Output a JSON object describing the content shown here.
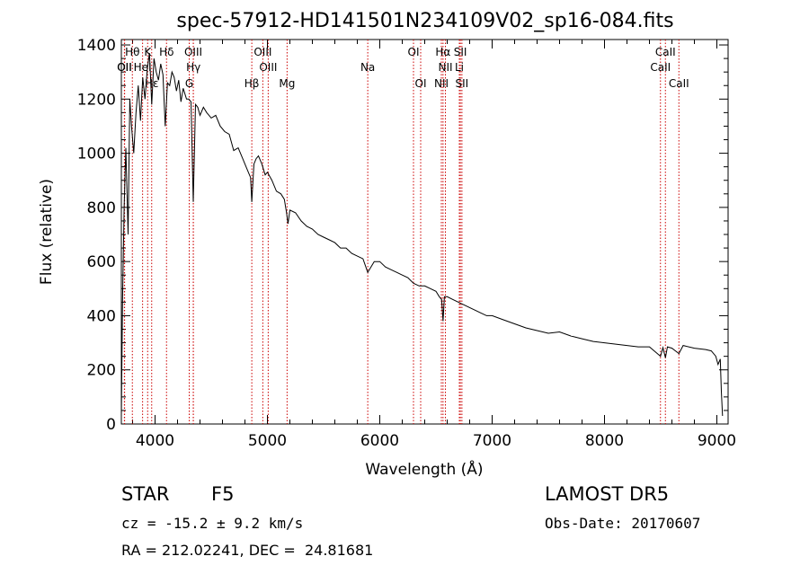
{
  "chart_data": {
    "type": "line",
    "title": "spec-57912-HD141501N234109V02_sp16-084.fits",
    "xlabel": "Wavelength (Å)",
    "ylabel": "Flux (relative)",
    "xlim": [
      3700,
      9100
    ],
    "ylim": [
      0,
      1420
    ],
    "xticks": [
      4000,
      5000,
      6000,
      7000,
      8000,
      9000
    ],
    "yticks": [
      0,
      200,
      400,
      600,
      800,
      1000,
      1200,
      1400
    ],
    "grid": false,
    "series": [
      {
        "x": [
          3700,
          3710,
          3725,
          3740,
          3760,
          3775,
          3790,
          3810,
          3830,
          3850,
          3870,
          3890,
          3910,
          3930,
          3950,
          3970,
          3990,
          4010,
          4030,
          4050,
          4070,
          4090,
          4110,
          4130,
          4150,
          4170,
          4190,
          4210,
          4230,
          4250,
          4280,
          4300,
          4320,
          4340,
          4360,
          4380,
          4400,
          4430,
          4460,
          4500,
          4540,
          4580,
          4620,
          4660,
          4700,
          4740,
          4780,
          4820,
          4850,
          4861,
          4880,
          4900,
          4920,
          4950,
          4980,
          5000,
          5040,
          5080,
          5120,
          5150,
          5170,
          5183,
          5200,
          5250,
          5300,
          5350,
          5400,
          5450,
          5500,
          5550,
          5600,
          5650,
          5700,
          5750,
          5800,
          5850,
          5893,
          5950,
          6000,
          6050,
          6100,
          6150,
          6200,
          6250,
          6300,
          6350,
          6400,
          6450,
          6500,
          6530,
          6550,
          6563,
          6575,
          6600,
          6650,
          6700,
          6750,
          6800,
          6850,
          6900,
          6950,
          7000,
          7100,
          7200,
          7300,
          7400,
          7500,
          7600,
          7700,
          7800,
          7900,
          8000,
          8100,
          8200,
          8300,
          8400,
          8498,
          8520,
          8542,
          8560,
          8600,
          8662,
          8700,
          8800,
          8900,
          8950,
          8990,
          9010,
          9030,
          9040,
          9050
        ],
        "values": [
          30,
          450,
          800,
          1020,
          700,
          1200,
          1100,
          1000,
          1150,
          1250,
          1120,
          1280,
          1200,
          1310,
          1370,
          1180,
          1350,
          1300,
          1270,
          1330,
          1290,
          1100,
          1260,
          1250,
          1300,
          1280,
          1230,
          1270,
          1190,
          1240,
          1200,
          1200,
          1190,
          820,
          1180,
          1170,
          1140,
          1170,
          1150,
          1130,
          1140,
          1100,
          1080,
          1070,
          1010,
          1020,
          980,
          940,
          910,
          820,
          960,
          980,
          990,
          960,
          920,
          930,
          900,
          860,
          850,
          830,
          780,
          740,
          790,
          780,
          750,
          730,
          720,
          700,
          690,
          680,
          670,
          650,
          650,
          630,
          620,
          610,
          560,
          600,
          600,
          580,
          570,
          560,
          550,
          540,
          520,
          510,
          510,
          500,
          490,
          470,
          460,
          380,
          470,
          470,
          460,
          450,
          440,
          430,
          420,
          410,
          400,
          400,
          385,
          370,
          355,
          345,
          335,
          340,
          325,
          315,
          305,
          300,
          295,
          290,
          285,
          285,
          250,
          282,
          245,
          285,
          280,
          260,
          290,
          280,
          275,
          270,
          250,
          220,
          240,
          120,
          30
        ]
      }
    ],
    "lines": [
      {
        "label": "Hθ",
        "x": 3798
      },
      {
        "label": "K",
        "x": 3934
      },
      {
        "label": "Hδ",
        "x": 4102
      },
      {
        "label": "OIII",
        "x": 4340
      },
      {
        "label": "OIII",
        "x": 4959
      },
      {
        "label": "OI",
        "x": 6300
      },
      {
        "label": "Hα",
        "x": 6563
      },
      {
        "label": "SII",
        "x": 6717
      },
      {
        "label": "CaII",
        "x": 8542
      },
      {
        "label": "OII",
        "x": 3727
      },
      {
        "label": "HeI",
        "x": 3889
      },
      {
        "label": "Hγ",
        "x": 4341
      },
      {
        "label": "OIII",
        "x": 5007
      },
      {
        "label": "Na",
        "x": 5893
      },
      {
        "label": "NII",
        "x": 6584
      },
      {
        "label": "Li",
        "x": 6708
      },
      {
        "label": "CaII",
        "x": 8498
      },
      {
        "label": "OII",
        "x": 3729
      },
      {
        "label": "Hε",
        "x": 3970
      },
      {
        "label": "G",
        "x": 4304
      },
      {
        "label": "Hβ",
        "x": 4861
      },
      {
        "label": "Mg",
        "x": 5175
      },
      {
        "label": "OI",
        "x": 6364
      },
      {
        "label": "NII",
        "x": 6548
      },
      {
        "label": "SII",
        "x": 6731
      },
      {
        "label": "CaII",
        "x": 8662
      }
    ]
  },
  "info": {
    "object_type": "STAR",
    "subclass": "F5",
    "survey": "LAMOST DR5",
    "redshift": "cz = -15.2 ± 9.2 km/s",
    "obs_date": "Obs-Date: 20170607",
    "coords": "RA = 212.02241, DEC =  24.81681"
  }
}
